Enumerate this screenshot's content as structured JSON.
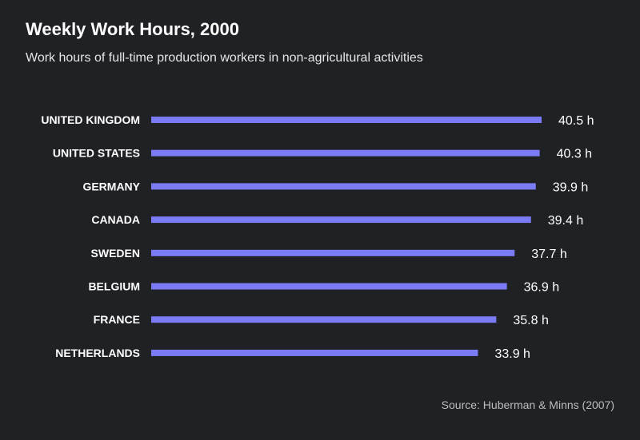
{
  "title": "Weekly Work Hours, 2000",
  "subtitle": "Work hours of full-time production workers in non-agricultural activities",
  "source": "Source: Huberman & Minns (2007)",
  "colors": {
    "background": "#1f2124",
    "bar": "#7b7cf5",
    "text": "#ffffff",
    "source_text": "#bdbdbd"
  },
  "chart_data": {
    "type": "bar",
    "orientation": "horizontal",
    "categories": [
      "UNITED KINGDOM",
      "UNITED STATES",
      "GERMANY",
      "CANADA",
      "SWEDEN",
      "BELGIUM",
      "FRANCE",
      "NETHERLANDS"
    ],
    "values": [
      40.5,
      40.3,
      39.9,
      39.4,
      37.7,
      36.9,
      35.8,
      33.9
    ],
    "value_labels": [
      "40.5 h",
      "40.3 h",
      "39.9 h",
      "39.4 h",
      "37.7 h",
      "36.9 h",
      "35.8 h",
      "33.9 h"
    ],
    "xlim": [
      0,
      40.5
    ],
    "grid": false,
    "legend": "none"
  }
}
